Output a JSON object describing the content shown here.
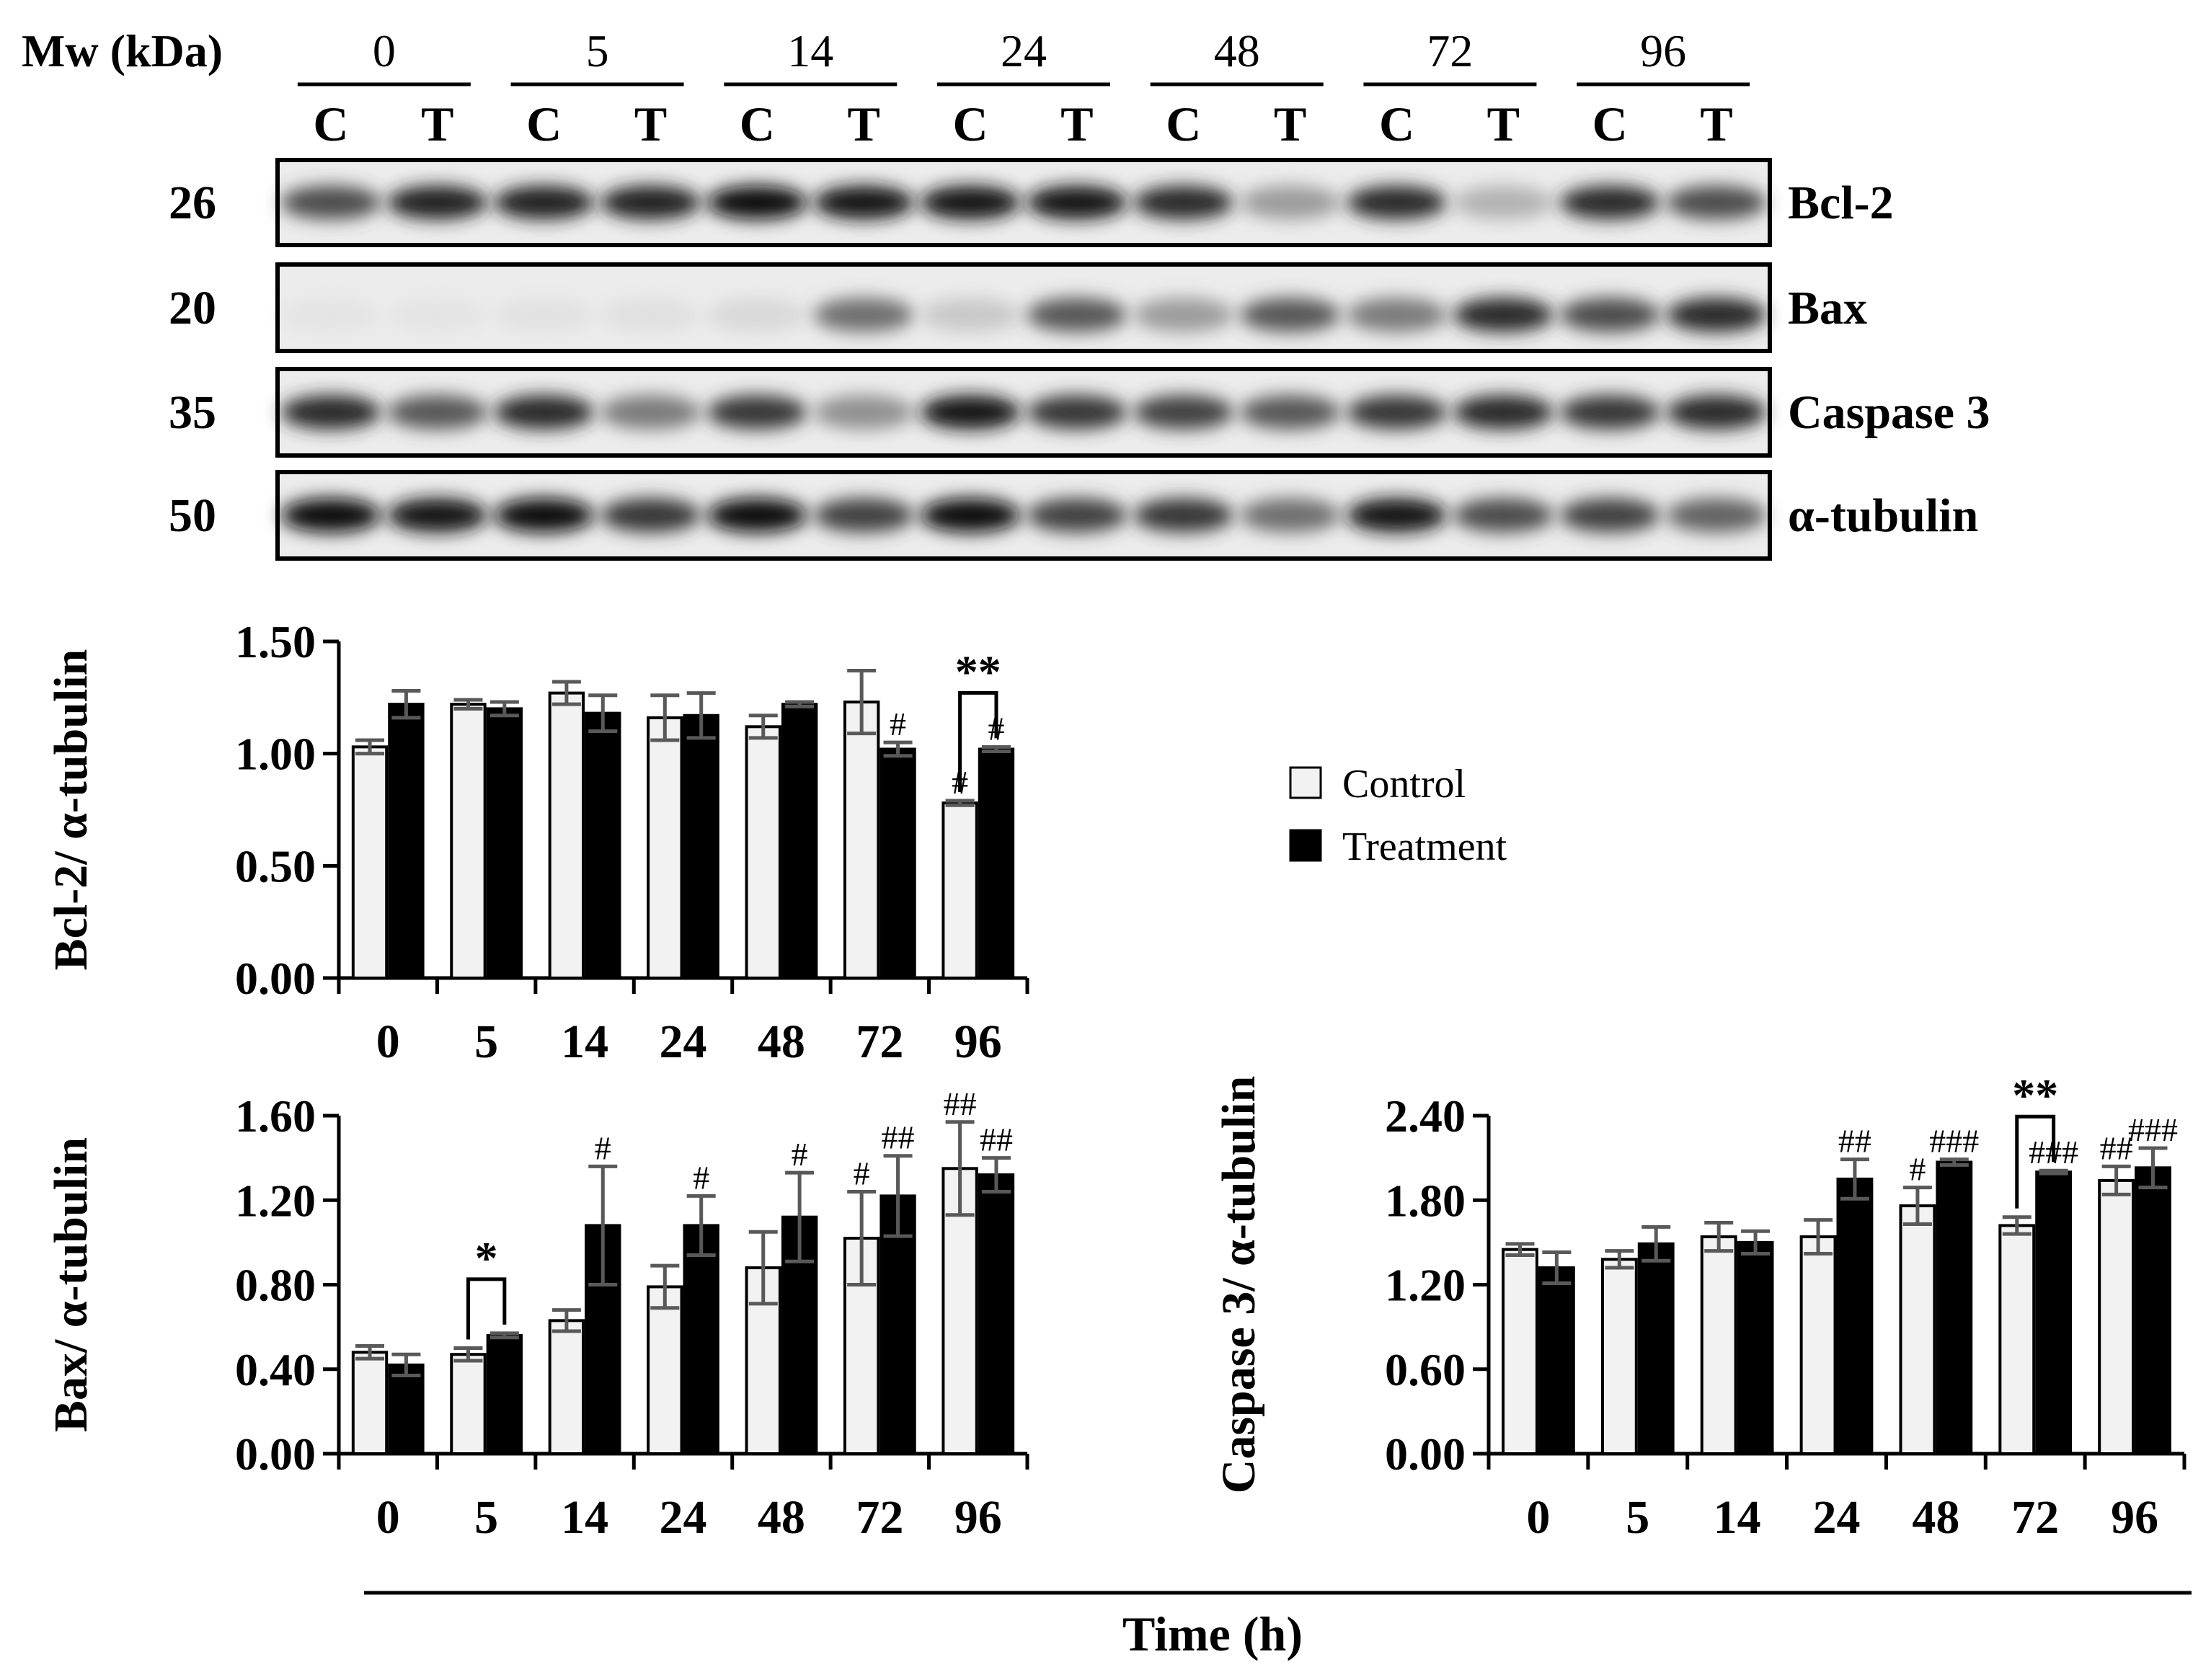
{
  "blot": {
    "mw_label": "Mw (kDa)",
    "timepoints": [
      "0",
      "5",
      "14",
      "24",
      "48",
      "72",
      "96"
    ],
    "lane_labels": [
      "C",
      "T"
    ],
    "rows": [
      {
        "mw": "26",
        "protein": "Bcl-2"
      },
      {
        "mw": "20",
        "protein": "Bax"
      },
      {
        "mw": "35",
        "protein": "Caspase 3"
      },
      {
        "mw": "50",
        "protein": "α-tubulin"
      }
    ]
  },
  "legend": {
    "items": [
      "Control",
      "Treatment"
    ]
  },
  "colors": {
    "control": "#f2f2f2",
    "treatment": "#000000",
    "error_bar": "#595959"
  },
  "shared_xlabel": "Time (h)",
  "chart_data": [
    {
      "type": "bar",
      "ylabel": "Bcl-2/ α-tubulin",
      "categories": [
        "0",
        "5",
        "14",
        "24",
        "48",
        "72",
        "96"
      ],
      "ylim": [
        0,
        1.5
      ],
      "yticks": [
        "0.00",
        "0.50",
        "1.00",
        "1.50"
      ],
      "series": [
        {
          "name": "Control",
          "values": [
            1.03,
            1.22,
            1.27,
            1.16,
            1.12,
            1.23,
            0.78
          ],
          "errors": [
            0.03,
            0.02,
            0.05,
            0.1,
            0.05,
            0.14,
            0.01
          ]
        },
        {
          "name": "Treatment",
          "values": [
            1.22,
            1.2,
            1.18,
            1.17,
            1.22,
            1.02,
            1.02
          ],
          "errors": [
            0.06,
            0.03,
            0.08,
            0.1,
            0.01,
            0.03,
            0.01
          ]
        }
      ],
      "annotations": [
        {
          "category": "72",
          "series": "Treatment",
          "text": "#"
        },
        {
          "category": "96",
          "series": "Control",
          "text": "#"
        },
        {
          "category": "96",
          "series": "Treatment",
          "text": "#"
        }
      ],
      "brackets": [
        {
          "category": "96",
          "text": "**"
        }
      ]
    },
    {
      "type": "bar",
      "ylabel": "Bax/ α-tubulin",
      "categories": [
        "0",
        "5",
        "14",
        "24",
        "48",
        "72",
        "96"
      ],
      "ylim": [
        0,
        1.6
      ],
      "yticks": [
        "0.00",
        "0.40",
        "0.80",
        "1.20",
        "1.60"
      ],
      "series": [
        {
          "name": "Control",
          "values": [
            0.48,
            0.47,
            0.63,
            0.79,
            0.88,
            1.02,
            1.35
          ],
          "errors": [
            0.03,
            0.03,
            0.05,
            0.1,
            0.17,
            0.22,
            0.22
          ]
        },
        {
          "name": "Treatment",
          "values": [
            0.42,
            0.56,
            1.08,
            1.08,
            1.12,
            1.22,
            1.32
          ],
          "errors": [
            0.05,
            0.01,
            0.28,
            0.14,
            0.21,
            0.19,
            0.08
          ]
        }
      ],
      "annotations": [
        {
          "category": "14",
          "series": "Treatment",
          "text": "#"
        },
        {
          "category": "24",
          "series": "Treatment",
          "text": "#"
        },
        {
          "category": "48",
          "series": "Treatment",
          "text": "#"
        },
        {
          "category": "72",
          "series": "Control",
          "text": "#"
        },
        {
          "category": "72",
          "series": "Treatment",
          "text": "##"
        },
        {
          "category": "96",
          "series": "Control",
          "text": "##"
        },
        {
          "category": "96",
          "series": "Treatment",
          "text": "##"
        }
      ],
      "brackets": [
        {
          "category": "5",
          "text": "*"
        }
      ]
    },
    {
      "type": "bar",
      "ylabel": "Caspase 3/ α-tubulin",
      "categories": [
        "0",
        "5",
        "14",
        "24",
        "48",
        "72",
        "96"
      ],
      "ylim": [
        0,
        2.4
      ],
      "yticks": [
        "0.00",
        "0.60",
        "1.20",
        "1.80",
        "2.40"
      ],
      "series": [
        {
          "name": "Control",
          "values": [
            1.45,
            1.38,
            1.54,
            1.54,
            1.76,
            1.62,
            1.94
          ],
          "errors": [
            0.04,
            0.06,
            0.1,
            0.12,
            0.13,
            0.06,
            0.1
          ]
        },
        {
          "name": "Treatment",
          "values": [
            1.32,
            1.49,
            1.5,
            1.95,
            2.07,
            2.0,
            2.03
          ],
          "errors": [
            0.11,
            0.12,
            0.08,
            0.14,
            0.02,
            0.01,
            0.14
          ]
        }
      ],
      "annotations": [
        {
          "category": "24",
          "series": "Treatment",
          "text": "##"
        },
        {
          "category": "48",
          "series": "Control",
          "text": "#"
        },
        {
          "category": "48",
          "series": "Treatment",
          "text": "###"
        },
        {
          "category": "72",
          "series": "Treatment",
          "text": "###"
        },
        {
          "category": "96",
          "series": "Control",
          "text": "##"
        },
        {
          "category": "96",
          "series": "Treatment",
          "text": "###"
        }
      ],
      "brackets": [
        {
          "category": "72",
          "text": "**"
        }
      ]
    }
  ]
}
